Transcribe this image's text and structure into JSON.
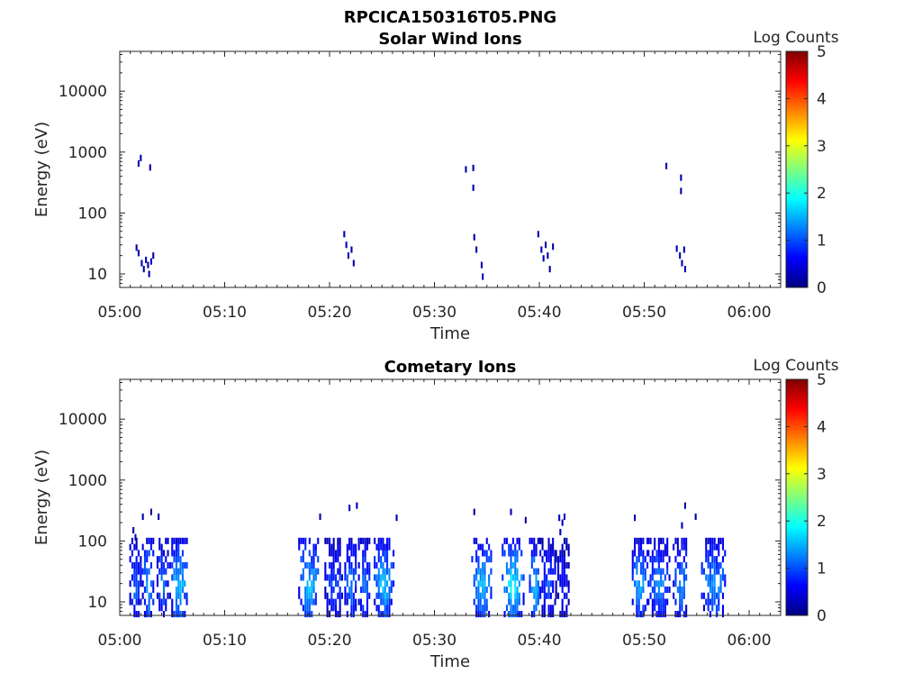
{
  "figure_title": "RPCICA150316T05.PNG",
  "colors": {
    "axis": "#262626",
    "colormap": [
      "#00007f",
      "#0000ff",
      "#007fff",
      "#00ffff",
      "#7fff7f",
      "#ffff00",
      "#ff7f00",
      "#ff0000",
      "#7f0000"
    ]
  },
  "chart_data": [
    {
      "type": "heatmap",
      "title": "Solar Wind Ions",
      "xlabel": "Time",
      "ylabel": "Energy (eV)",
      "x_ticks": [
        "05:00",
        "05:10",
        "05:20",
        "05:30",
        "05:40",
        "05:50",
        "06:00"
      ],
      "x_range_minutes": [
        0,
        63
      ],
      "y_scale": "log",
      "y_ticks": [
        "10",
        "100",
        "1000",
        "10000"
      ],
      "y_range": [
        6,
        45000
      ],
      "colorbar": {
        "label": "Log Counts",
        "range": [
          0,
          5
        ],
        "ticks": [
          "0",
          "1",
          "2",
          "3",
          "4",
          "5"
        ]
      },
      "grid": false,
      "cells": [
        [
          1.6,
          27,
          0.2
        ],
        [
          1.8,
          22,
          0.2
        ],
        [
          2.1,
          15,
          0.3
        ],
        [
          2.3,
          12,
          0.2
        ],
        [
          2.5,
          17,
          0.3
        ],
        [
          2.7,
          14,
          0.3
        ],
        [
          2.8,
          10,
          0.2
        ],
        [
          3.0,
          16,
          0.3
        ],
        [
          3.2,
          20,
          0.2
        ],
        [
          1.8,
          650,
          0.2
        ],
        [
          2.0,
          800,
          0.2
        ],
        [
          2.9,
          560,
          0.2
        ],
        [
          21.4,
          45,
          0.2
        ],
        [
          21.6,
          30,
          0.3
        ],
        [
          21.8,
          20,
          0.3
        ],
        [
          22.1,
          25,
          0.2
        ],
        [
          22.3,
          15,
          0.2
        ],
        [
          33.0,
          520,
          0.2
        ],
        [
          33.7,
          550,
          0.2
        ],
        [
          33.7,
          260,
          0.2
        ],
        [
          33.8,
          40,
          0.2
        ],
        [
          34.0,
          25,
          0.2
        ],
        [
          34.5,
          14,
          0.2
        ],
        [
          34.6,
          9,
          0.3
        ],
        [
          39.9,
          45,
          0.2
        ],
        [
          40.2,
          25,
          0.3
        ],
        [
          40.4,
          18,
          0.3
        ],
        [
          40.6,
          30,
          0.2
        ],
        [
          40.8,
          20,
          0.2
        ],
        [
          41.0,
          12,
          0.2
        ],
        [
          41.3,
          28,
          0.2
        ],
        [
          52.1,
          590,
          0.2
        ],
        [
          53.5,
          380,
          0.2
        ],
        [
          53.5,
          230,
          0.2
        ],
        [
          53.1,
          26,
          0.3
        ],
        [
          53.4,
          20,
          0.3
        ],
        [
          53.6,
          15,
          0.3
        ],
        [
          53.8,
          25,
          0.2
        ],
        [
          53.9,
          12,
          0.2
        ]
      ]
    },
    {
      "type": "heatmap",
      "title": "Cometary Ions",
      "xlabel": "Time",
      "ylabel": "Energy (eV)",
      "x_ticks": [
        "05:00",
        "05:10",
        "05:20",
        "05:30",
        "05:40",
        "05:50",
        "06:00"
      ],
      "x_range_minutes": [
        0,
        63
      ],
      "y_scale": "log",
      "y_ticks": [
        "10",
        "100",
        "1000",
        "10000"
      ],
      "y_range": [
        6,
        45000
      ],
      "colorbar": {
        "label": "Log Counts",
        "range": [
          0,
          5
        ],
        "ticks": [
          "0",
          "1",
          "2",
          "3",
          "4",
          "5"
        ]
      },
      "grid": false,
      "cells": [
        [
          1.3,
          150,
          0.2
        ],
        [
          2.2,
          250,
          0.2
        ],
        [
          3.0,
          300,
          0.2
        ],
        [
          3.7,
          250,
          0.2
        ],
        [
          1.5,
          115,
          0.3
        ],
        [
          33.8,
          300,
          0.2
        ],
        [
          37.3,
          300,
          0.3
        ],
        [
          41.9,
          240,
          0.3
        ],
        [
          38.7,
          220,
          0.2
        ],
        [
          19.1,
          250,
          0.2
        ],
        [
          21.9,
          350,
          0.3
        ],
        [
          22.6,
          380,
          0.3
        ],
        [
          26.4,
          240,
          0.2
        ],
        [
          53.9,
          380,
          0.2
        ],
        [
          54.9,
          250,
          0.2
        ],
        [
          53.6,
          180,
          0.3
        ],
        [
          49.1,
          240,
          0.3
        ],
        [
          42.4,
          250,
          0.3
        ],
        [
          42.2,
          200,
          0.3
        ],
        [
          42.0,
          140,
          0.3
        ]
      ],
      "bursts": [
        [
          1.0,
          2.0,
          1.1
        ],
        [
          2.2,
          3.3,
          1.5
        ],
        [
          3.6,
          4.6,
          1.2
        ],
        [
          4.8,
          6.5,
          1.6
        ],
        [
          17.1,
          19.0,
          1.6
        ],
        [
          19.6,
          21.3,
          1.0
        ],
        [
          21.5,
          22.6,
          1.3
        ],
        [
          22.8,
          23.9,
          1.2
        ],
        [
          24.3,
          26.1,
          1.6
        ],
        [
          33.6,
          35.5,
          1.6
        ],
        [
          36.5,
          38.5,
          1.9
        ],
        [
          39.1,
          40.1,
          1.6
        ],
        [
          40.1,
          41.5,
          1.0
        ],
        [
          41.6,
          42.8,
          0.7
        ],
        [
          48.9,
          50.3,
          1.5
        ],
        [
          50.4,
          52.4,
          1.3
        ],
        [
          52.8,
          54.2,
          1.3
        ],
        [
          55.5,
          57.8,
          1.4
        ]
      ]
    }
  ]
}
